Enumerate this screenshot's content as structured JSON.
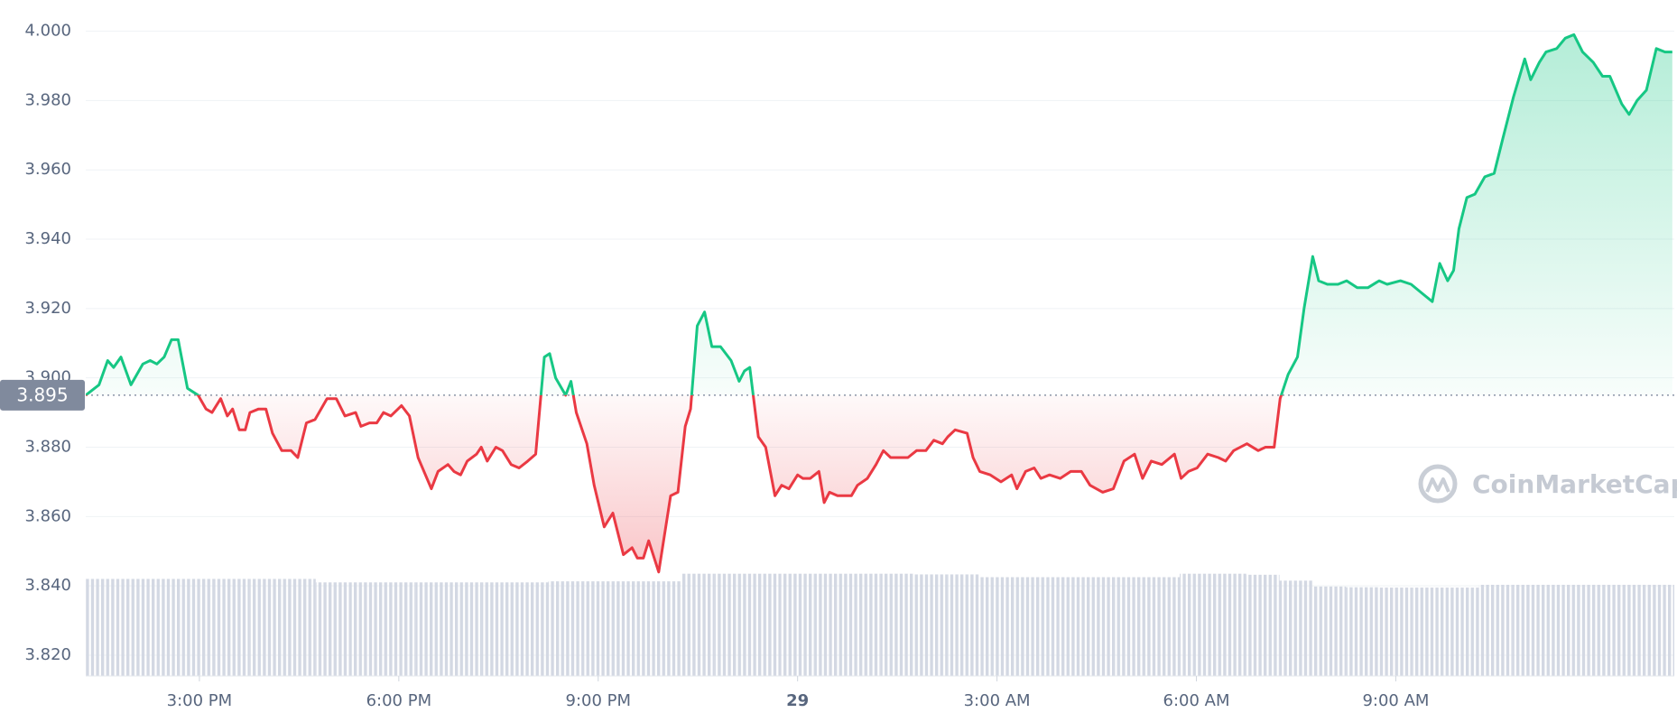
{
  "chart_data": {
    "type": "line",
    "x": [
      13.29,
      13.49,
      13.62,
      13.71,
      13.82,
      13.97,
      14.15,
      14.26,
      14.36,
      14.47,
      14.58,
      14.68,
      14.82,
      14.98,
      15.1,
      15.19,
      15.32,
      15.42,
      15.5,
      15.6,
      15.69,
      15.76,
      15.89,
      16.0,
      16.1,
      16.24,
      16.38,
      16.48,
      16.61,
      16.74,
      16.92,
      17.06,
      17.19,
      17.35,
      17.43,
      17.56,
      17.67,
      17.77,
      17.88,
      18.04,
      18.16,
      18.29,
      18.49,
      18.59,
      18.74,
      18.83,
      18.93,
      19.03,
      19.17,
      19.24,
      19.33,
      19.46,
      19.56,
      19.69,
      19.81,
      19.94,
      20.06,
      20.19,
      20.27,
      20.36,
      20.51,
      20.59,
      20.67,
      20.83,
      20.94,
      21.09,
      21.22,
      21.38,
      21.51,
      21.59,
      21.68,
      21.76,
      21.91,
      22.09,
      22.2,
      22.31,
      22.39,
      22.49,
      22.6,
      22.71,
      22.84,
      23.0,
      23.12,
      23.2,
      23.28,
      23.41,
      23.52,
      23.66,
      23.76,
      23.87,
      24.0,
      24.08,
      24.19,
      24.32,
      24.4,
      24.48,
      24.6,
      24.81,
      24.9,
      25.05,
      25.18,
      25.29,
      25.4,
      25.66,
      25.79,
      25.93,
      26.05,
      26.18,
      26.26,
      26.37,
      26.55,
      26.64,
      26.74,
      26.9,
      27.06,
      27.22,
      27.3,
      27.43,
      27.56,
      27.66,
      27.79,
      27.95,
      28.11,
      28.27,
      28.4,
      28.59,
      28.75,
      28.91,
      29.07,
      29.19,
      29.32,
      29.48,
      29.67,
      29.77,
      29.88,
      30.01,
      30.17,
      30.33,
      30.44,
      30.56,
      30.76,
      30.93,
      31.04,
      31.17,
      31.26,
      31.38,
      31.52,
      31.62,
      31.75,
      31.84,
      31.97,
      32.13,
      32.26,
      32.42,
      32.58,
      32.75,
      32.87,
      33.07,
      33.23,
      33.42,
      33.55,
      33.66,
      33.78,
      33.87,
      33.95,
      34.07,
      34.19,
      34.34,
      34.48,
      34.61,
      34.77,
      34.94,
      35.03,
      35.16,
      35.26,
      35.42,
      35.55,
      35.68,
      35.81,
      35.97,
      36.11,
      36.22,
      36.4,
      36.51,
      36.63,
      36.77,
      36.92,
      37.05,
      37.16
    ],
    "values": [
      3.895,
      3.898,
      3.905,
      3.903,
      3.906,
      3.898,
      3.904,
      3.905,
      3.904,
      3.906,
      3.911,
      3.911,
      3.897,
      3.895,
      3.891,
      3.89,
      3.894,
      3.889,
      3.891,
      3.885,
      3.885,
      3.89,
      3.891,
      3.891,
      3.884,
      3.879,
      3.879,
      3.877,
      3.887,
      3.888,
      3.894,
      3.894,
      3.889,
      3.89,
      3.886,
      3.887,
      3.887,
      3.89,
      3.889,
      3.892,
      3.889,
      3.877,
      3.868,
      3.873,
      3.875,
      3.873,
      3.872,
      3.876,
      3.878,
      3.88,
      3.876,
      3.88,
      3.879,
      3.875,
      3.874,
      3.876,
      3.878,
      3.906,
      3.907,
      3.9,
      3.895,
      3.899,
      3.89,
      3.881,
      3.869,
      3.857,
      3.861,
      3.849,
      3.851,
      3.848,
      3.848,
      3.853,
      3.844,
      3.866,
      3.867,
      3.886,
      3.891,
      3.915,
      3.919,
      3.909,
      3.909,
      3.905,
      3.899,
      3.902,
      3.903,
      3.883,
      3.88,
      3.866,
      3.869,
      3.868,
      3.872,
      3.871,
      3.871,
      3.873,
      3.864,
      3.867,
      3.866,
      3.866,
      3.869,
      3.871,
      3.875,
      3.879,
      3.877,
      3.877,
      3.879,
      3.879,
      3.882,
      3.881,
      3.883,
      3.885,
      3.884,
      3.877,
      3.873,
      3.872,
      3.87,
      3.872,
      3.868,
      3.873,
      3.874,
      3.871,
      3.872,
      3.871,
      3.873,
      3.873,
      3.869,
      3.867,
      3.868,
      3.876,
      3.878,
      3.871,
      3.876,
      3.875,
      3.878,
      3.871,
      3.873,
      3.874,
      3.878,
      3.877,
      3.876,
      3.879,
      3.881,
      3.879,
      3.88,
      3.88,
      3.894,
      3.901,
      3.906,
      3.92,
      3.935,
      3.928,
      3.927,
      3.927,
      3.928,
      3.926,
      3.926,
      3.928,
      3.927,
      3.928,
      3.927,
      3.924,
      3.922,
      3.933,
      3.928,
      3.931,
      3.943,
      3.952,
      3.953,
      3.958,
      3.959,
      3.969,
      3.981,
      3.992,
      3.986,
      3.991,
      3.994,
      3.995,
      3.998,
      3.999,
      3.994,
      3.991,
      3.987,
      3.987,
      3.979,
      3.976,
      3.98,
      3.983,
      3.995,
      3.994,
      3.994
    ],
    "baseline": 3.895,
    "up_color": "#16c784",
    "down_color": "#ea3943",
    "volume": {
      "color": "#d3d8e3",
      "x": [
        13.5,
        14,
        14.5,
        15,
        15.5,
        16,
        16.5,
        17,
        17.5,
        18,
        18.5,
        19,
        19.5,
        20,
        20.5,
        21,
        21.5,
        22,
        22.5,
        23,
        23.5,
        24,
        24.5,
        25,
        25.5,
        26,
        26.5,
        27,
        27.5,
        28,
        28.5,
        29,
        29.5,
        30,
        30.5,
        31,
        31.5,
        32,
        32.5,
        33,
        33.5,
        34,
        34.5,
        35,
        35.5,
        36,
        36.5,
        37
      ],
      "values": [
        3.842,
        3.842,
        3.842,
        3.842,
        3.842,
        3.842,
        3.842,
        3.841,
        3.841,
        3.841,
        3.841,
        3.841,
        3.841,
        3.841,
        3.8413,
        3.8413,
        3.8413,
        3.8413,
        3.8435,
        3.8435,
        3.8435,
        3.8435,
        3.8435,
        3.8435,
        3.8435,
        3.8433,
        3.8433,
        3.8425,
        3.8425,
        3.8425,
        3.8425,
        3.8425,
        3.8425,
        3.8435,
        3.8435,
        3.8432,
        3.8415,
        3.8398,
        3.8396,
        3.8395,
        3.8395,
        3.8395,
        3.8403,
        3.8403,
        3.8403,
        3.8403,
        3.8403,
        3.8403
      ]
    },
    "xlim": [
      13.29,
      37.19
    ],
    "xticks": [
      {
        "value": 15,
        "label": "3:00 PM"
      },
      {
        "value": 18,
        "label": "6:00 PM"
      },
      {
        "value": 21,
        "label": "9:00 PM"
      },
      {
        "value": 24,
        "label": "29"
      },
      {
        "value": 27,
        "label": "3:00 AM"
      },
      {
        "value": 30,
        "label": "6:00 AM"
      },
      {
        "value": 33,
        "label": "9:00 AM"
      }
    ],
    "ylim": [
      3.814,
      4.009
    ],
    "yticks": [
      {
        "value": 3.82,
        "label": "3.820"
      },
      {
        "value": 3.84,
        "label": "3.840"
      },
      {
        "value": 3.86,
        "label": "3.860"
      },
      {
        "value": 3.88,
        "label": "3.880"
      },
      {
        "value": 3.9,
        "label": "3.900"
      },
      {
        "value": 3.92,
        "label": "3.920"
      },
      {
        "value": 3.94,
        "label": "3.940"
      },
      {
        "value": 3.96,
        "label": "3.960"
      },
      {
        "value": 3.98,
        "label": "3.980"
      },
      {
        "value": 4.0,
        "label": "4.000"
      }
    ],
    "grid": true,
    "watermark": "CoinMarketCap"
  }
}
